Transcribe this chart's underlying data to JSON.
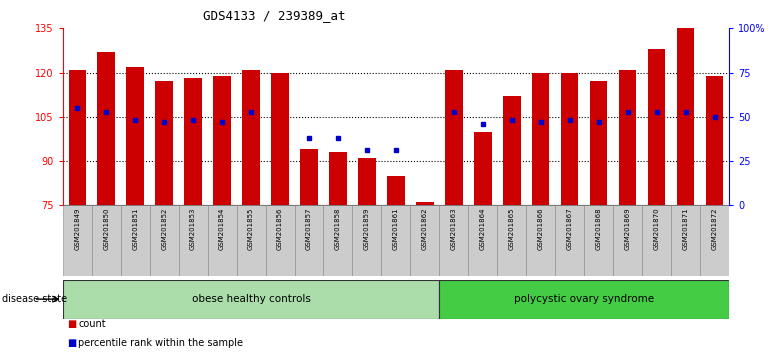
{
  "title": "GDS4133 / 239389_at",
  "samples": [
    "GSM201849",
    "GSM201850",
    "GSM201851",
    "GSM201852",
    "GSM201853",
    "GSM201854",
    "GSM201855",
    "GSM201856",
    "GSM201857",
    "GSM201858",
    "GSM201859",
    "GSM201861",
    "GSM201862",
    "GSM201863",
    "GSM201864",
    "GSM201865",
    "GSM201866",
    "GSM201867",
    "GSM201868",
    "GSM201869",
    "GSM201870",
    "GSM201871",
    "GSM201872"
  ],
  "counts": [
    121,
    127,
    122,
    117,
    118,
    119,
    121,
    120,
    94,
    93,
    91,
    85,
    76,
    121,
    100,
    112,
    120,
    120,
    117,
    121,
    128,
    135,
    119
  ],
  "percentile_ranks": [
    55,
    53,
    48,
    47,
    48,
    47,
    53,
    null,
    38,
    38,
    31,
    31,
    null,
    53,
    46,
    48,
    47,
    48,
    47,
    53,
    53,
    53,
    50
  ],
  "group_ranges": [
    [
      0,
      12
    ],
    [
      13,
      22
    ]
  ],
  "group_names": [
    "obese healthy controls",
    "polycystic ovary syndrome"
  ],
  "ylim_left": [
    75,
    135
  ],
  "yticks_left": [
    75,
    90,
    105,
    120,
    135
  ],
  "ylim_right": [
    0,
    100
  ],
  "yticks_right": [
    0,
    25,
    50,
    75,
    100
  ],
  "bar_color": "#cc0000",
  "dot_color": "#0000cc",
  "bar_width": 0.6,
  "background_color": "#ffffff",
  "group_colors": [
    "#aaddaa",
    "#44cc44"
  ],
  "label_bg": "#d3d3d3"
}
